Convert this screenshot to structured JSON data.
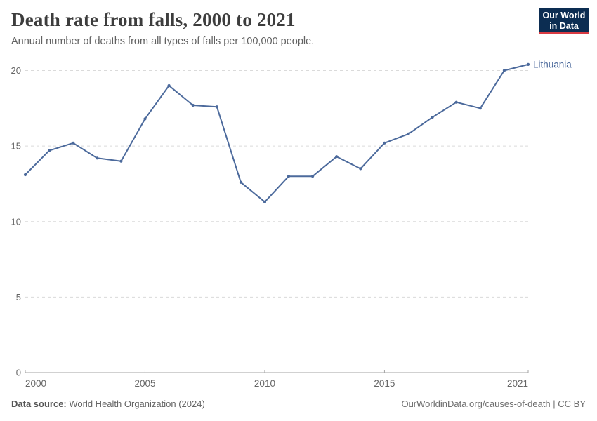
{
  "header": {
    "title": "Death rate from falls, 2000 to 2021",
    "subtitle": "Annual number of deaths from all types of falls per 100,000 people.",
    "logo": {
      "line1": "Our World",
      "line2": "in Data"
    }
  },
  "chart_data": {
    "type": "line",
    "title": "Death rate from falls, 2000 to 2021",
    "xlabel": "",
    "ylabel": "",
    "x": [
      2000,
      2001,
      2002,
      2003,
      2004,
      2005,
      2006,
      2007,
      2008,
      2009,
      2010,
      2011,
      2012,
      2013,
      2014,
      2015,
      2016,
      2017,
      2018,
      2019,
      2020,
      2021
    ],
    "series": [
      {
        "name": "Lithuania",
        "color": "#4c6a9c",
        "values": [
          13.1,
          14.7,
          15.2,
          14.2,
          14.0,
          16.8,
          19.0,
          17.7,
          17.6,
          12.6,
          11.3,
          13.0,
          13.0,
          14.3,
          13.5,
          15.2,
          15.8,
          16.9,
          17.9,
          17.5,
          20.0,
          20.4
        ]
      }
    ],
    "xlim": [
      2000,
      2021
    ],
    "ylim": [
      0,
      20.4
    ],
    "yticks": [
      0,
      5,
      10,
      15,
      20
    ],
    "xticks": [
      2000,
      2005,
      2010,
      2015,
      2021
    ],
    "grid": "horizontal-dashed",
    "legend_position": "line-end-label",
    "marker": "dot"
  },
  "colors": {
    "line": "#4c6a9c",
    "grid": "#dadada",
    "axis": "#a3a3a3",
    "tick_label": "#666666",
    "logo_bg": "#0c2d52",
    "logo_accent": "#d93b43"
  },
  "footer": {
    "source_label": "Data source:",
    "source_value": " World Health Organization (2024)",
    "attribution": "OurWorldinData.org/causes-of-death | CC BY"
  }
}
